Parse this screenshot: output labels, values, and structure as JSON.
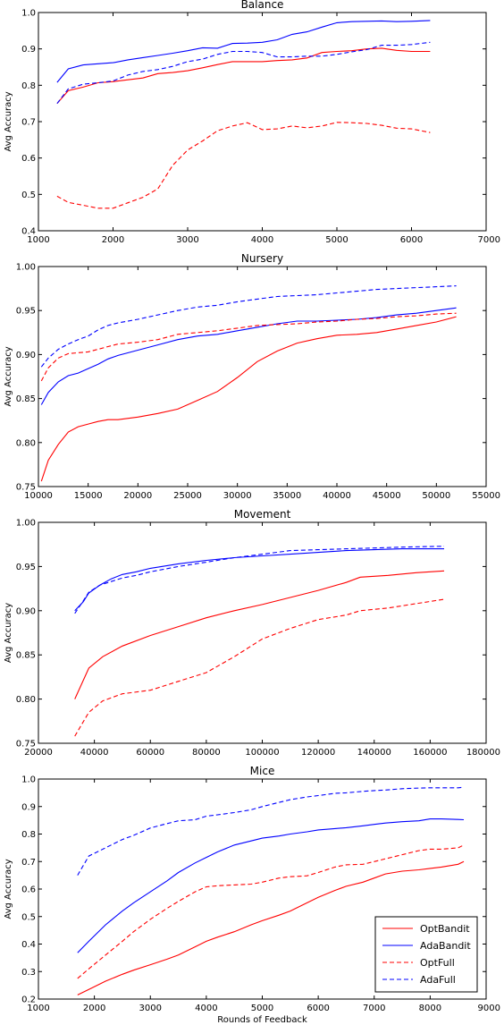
{
  "chart_data": [
    {
      "type": "line",
      "title": "Balance",
      "xlabel": "",
      "ylabel": "Avg Accuracy",
      "xlim": [
        1000,
        7000
      ],
      "ylim": [
        0.4,
        1.0
      ],
      "xticks": [
        "1000",
        "2000",
        "3000",
        "4000",
        "5000",
        "6000",
        "7000"
      ],
      "yticks": [
        "0.4",
        "0.5",
        "0.6",
        "0.7",
        "0.8",
        "0.9",
        "1.0"
      ],
      "grid": false,
      "legend": false,
      "series": [
        {
          "name": "OptBandit",
          "color": "#ff0000",
          "dash": "solid",
          "x": [
            1250,
            1400,
            1600,
            1800,
            2000,
            2200,
            2400,
            2600,
            2800,
            3000,
            3200,
            3400,
            3600,
            3800,
            4000,
            4200,
            4400,
            4600,
            4800,
            5000,
            5200,
            5400,
            5600,
            5800,
            6000,
            6250
          ],
          "y": [
            0.75,
            0.785,
            0.795,
            0.807,
            0.81,
            0.815,
            0.82,
            0.832,
            0.835,
            0.84,
            0.848,
            0.857,
            0.865,
            0.865,
            0.865,
            0.868,
            0.87,
            0.875,
            0.89,
            0.893,
            0.895,
            0.9,
            0.902,
            0.896,
            0.893,
            0.893
          ]
        },
        {
          "name": "AdaBandit",
          "color": "#0000ff",
          "dash": "solid",
          "x": [
            1250,
            1400,
            1600,
            1800,
            2000,
            2200,
            2400,
            2600,
            2800,
            3000,
            3200,
            3400,
            3600,
            3800,
            4000,
            4200,
            4400,
            4600,
            4800,
            5000,
            5200,
            5400,
            5600,
            5800,
            6000,
            6250
          ],
          "y": [
            0.808,
            0.845,
            0.856,
            0.859,
            0.862,
            0.87,
            0.876,
            0.882,
            0.888,
            0.895,
            0.903,
            0.902,
            0.915,
            0.916,
            0.918,
            0.925,
            0.94,
            0.947,
            0.96,
            0.972,
            0.975,
            0.976,
            0.977,
            0.975,
            0.976,
            0.978
          ]
        },
        {
          "name": "OptFull",
          "color": "#ff0000",
          "dash": "dashed",
          "x": [
            1250,
            1400,
            1600,
            1800,
            2000,
            2200,
            2400,
            2600,
            2800,
            3000,
            3200,
            3400,
            3600,
            3800,
            4000,
            4200,
            4400,
            4600,
            4800,
            5000,
            5200,
            5400,
            5600,
            5800,
            6000,
            6250
          ],
          "y": [
            0.495,
            0.478,
            0.47,
            0.462,
            0.462,
            0.477,
            0.492,
            0.515,
            0.58,
            0.622,
            0.647,
            0.675,
            0.688,
            0.697,
            0.678,
            0.68,
            0.688,
            0.683,
            0.688,
            0.698,
            0.697,
            0.695,
            0.69,
            0.682,
            0.68,
            0.67
          ]
        },
        {
          "name": "AdaFull",
          "color": "#0000ff",
          "dash": "dashed",
          "x": [
            1250,
            1400,
            1600,
            1800,
            2000,
            2200,
            2400,
            2600,
            2800,
            3000,
            3200,
            3400,
            3600,
            3800,
            4000,
            4200,
            4400,
            4600,
            4800,
            5000,
            5200,
            5400,
            5600,
            5800,
            6000,
            6250
          ],
          "y": [
            0.75,
            0.79,
            0.803,
            0.807,
            0.812,
            0.828,
            0.838,
            0.843,
            0.852,
            0.865,
            0.872,
            0.885,
            0.893,
            0.893,
            0.89,
            0.878,
            0.878,
            0.88,
            0.88,
            0.885,
            0.892,
            0.898,
            0.91,
            0.91,
            0.912,
            0.918
          ]
        }
      ]
    },
    {
      "type": "line",
      "title": "Nursery",
      "xlabel": "",
      "ylabel": "Avg Accuracy",
      "xlim": [
        10000,
        55000
      ],
      "ylim": [
        0.75,
        1.0
      ],
      "xticks": [
        "10000",
        "15000",
        "20000",
        "25000",
        "30000",
        "35000",
        "40000",
        "45000",
        "50000",
        "55000"
      ],
      "yticks": [
        "0.75",
        "0.80",
        "0.85",
        "0.90",
        "0.95",
        "1.00"
      ],
      "grid": false,
      "legend": false,
      "series": [
        {
          "name": "OptBandit",
          "color": "#ff0000",
          "dash": "solid",
          "x": [
            10300,
            11000,
            12000,
            13000,
            14000,
            15000,
            16000,
            17000,
            18000,
            20000,
            22000,
            24000,
            26000,
            28000,
            30000,
            32000,
            34000,
            36000,
            38000,
            40000,
            42000,
            44000,
            46000,
            48000,
            50000,
            52000
          ],
          "y": [
            0.756,
            0.78,
            0.798,
            0.812,
            0.818,
            0.821,
            0.824,
            0.826,
            0.826,
            0.829,
            0.833,
            0.838,
            0.848,
            0.858,
            0.874,
            0.892,
            0.904,
            0.913,
            0.918,
            0.922,
            0.923,
            0.925,
            0.929,
            0.933,
            0.937,
            0.943
          ]
        },
        {
          "name": "AdaBandit",
          "color": "#0000ff",
          "dash": "solid",
          "x": [
            10300,
            11000,
            12000,
            13000,
            14000,
            15000,
            16000,
            17000,
            18000,
            20000,
            22000,
            24000,
            26000,
            28000,
            30000,
            32000,
            34000,
            36000,
            38000,
            40000,
            42000,
            44000,
            46000,
            48000,
            50000,
            52000
          ],
          "y": [
            0.843,
            0.857,
            0.869,
            0.876,
            0.879,
            0.884,
            0.889,
            0.895,
            0.899,
            0.905,
            0.911,
            0.917,
            0.921,
            0.923,
            0.927,
            0.931,
            0.935,
            0.938,
            0.938,
            0.939,
            0.94,
            0.942,
            0.945,
            0.947,
            0.95,
            0.953
          ]
        },
        {
          "name": "OptFull",
          "color": "#ff0000",
          "dash": "dashed",
          "x": [
            10300,
            11000,
            12000,
            13000,
            14000,
            15000,
            16000,
            17000,
            18000,
            20000,
            22000,
            24000,
            26000,
            28000,
            30000,
            32000,
            34000,
            36000,
            38000,
            40000,
            42000,
            44000,
            46000,
            48000,
            50000,
            52000
          ],
          "y": [
            0.87,
            0.885,
            0.896,
            0.901,
            0.902,
            0.903,
            0.906,
            0.909,
            0.912,
            0.914,
            0.917,
            0.923,
            0.925,
            0.927,
            0.93,
            0.933,
            0.934,
            0.935,
            0.937,
            0.938,
            0.94,
            0.941,
            0.943,
            0.944,
            0.946,
            0.947
          ]
        },
        {
          "name": "AdaFull",
          "color": "#0000ff",
          "dash": "dashed",
          "x": [
            10300,
            11000,
            12000,
            13000,
            14000,
            15000,
            16000,
            17000,
            18000,
            20000,
            22000,
            24000,
            26000,
            28000,
            30000,
            32000,
            34000,
            36000,
            38000,
            40000,
            42000,
            44000,
            46000,
            48000,
            50000,
            52000
          ],
          "y": [
            0.886,
            0.896,
            0.906,
            0.912,
            0.917,
            0.921,
            0.928,
            0.933,
            0.936,
            0.94,
            0.945,
            0.95,
            0.954,
            0.956,
            0.96,
            0.963,
            0.966,
            0.967,
            0.968,
            0.97,
            0.972,
            0.974,
            0.975,
            0.976,
            0.977,
            0.978
          ]
        }
      ]
    },
    {
      "type": "line",
      "title": "Movement",
      "xlabel": "",
      "ylabel": "Avg Accuracy",
      "xlim": [
        20000,
        180000
      ],
      "ylim": [
        0.75,
        1.0
      ],
      "xticks": [
        "20000",
        "40000",
        "60000",
        "80000",
        "100000",
        "120000",
        "140000",
        "160000",
        "180000"
      ],
      "yticks": [
        "0.75",
        "0.80",
        "0.85",
        "0.90",
        "0.95",
        "1.00"
      ],
      "grid": false,
      "legend": false,
      "series": [
        {
          "name": "OptBandit",
          "color": "#ff0000",
          "dash": "solid",
          "x": [
            33000,
            38000,
            43000,
            50000,
            60000,
            70000,
            80000,
            90000,
            100000,
            110000,
            120000,
            130000,
            135000,
            145000,
            155000,
            165000
          ],
          "y": [
            0.8,
            0.835,
            0.848,
            0.86,
            0.872,
            0.882,
            0.892,
            0.9,
            0.907,
            0.915,
            0.923,
            0.932,
            0.938,
            0.94,
            0.943,
            0.945
          ]
        },
        {
          "name": "AdaBandit",
          "color": "#0000ff",
          "dash": "solid",
          "x": [
            33000,
            36000,
            38000,
            42000,
            46000,
            50000,
            55000,
            60000,
            70000,
            80000,
            90000,
            100000,
            110000,
            120000,
            130000,
            140000,
            150000,
            165000
          ],
          "y": [
            0.9,
            0.91,
            0.92,
            0.929,
            0.936,
            0.941,
            0.944,
            0.948,
            0.953,
            0.957,
            0.96,
            0.962,
            0.964,
            0.966,
            0.968,
            0.969,
            0.97,
            0.97
          ]
        },
        {
          "name": "OptFull",
          "color": "#ff0000",
          "dash": "dashed",
          "x": [
            33000,
            38000,
            43000,
            50000,
            60000,
            70000,
            80000,
            90000,
            100000,
            110000,
            120000,
            130000,
            135000,
            145000,
            155000,
            165000
          ],
          "y": [
            0.758,
            0.785,
            0.798,
            0.806,
            0.81,
            0.82,
            0.83,
            0.848,
            0.868,
            0.88,
            0.89,
            0.895,
            0.9,
            0.903,
            0.908,
            0.913
          ]
        },
        {
          "name": "AdaFull",
          "color": "#0000ff",
          "dash": "dashed",
          "x": [
            33000,
            36000,
            38000,
            42000,
            46000,
            50000,
            55000,
            60000,
            70000,
            80000,
            90000,
            100000,
            110000,
            120000,
            130000,
            140000,
            150000,
            165000
          ],
          "y": [
            0.897,
            0.911,
            0.921,
            0.929,
            0.933,
            0.937,
            0.94,
            0.944,
            0.95,
            0.955,
            0.96,
            0.964,
            0.968,
            0.969,
            0.97,
            0.971,
            0.972,
            0.973
          ]
        }
      ]
    },
    {
      "type": "line",
      "title": "Mice",
      "xlabel": "Rounds of Feedback",
      "ylabel": "Avg Accuracy",
      "xlim": [
        1000,
        9000
      ],
      "ylim": [
        0.2,
        1.0
      ],
      "xticks": [
        "1000",
        "2000",
        "3000",
        "4000",
        "5000",
        "6000",
        "7000",
        "8000",
        "9000"
      ],
      "yticks": [
        "0.2",
        "0.3",
        "0.4",
        "0.5",
        "0.6",
        "0.7",
        "0.8",
        "0.9",
        "1.0"
      ],
      "grid": false,
      "legend": true,
      "legend_position": "lower-right",
      "series": [
        {
          "name": "OptBandit",
          "color": "#ff0000",
          "dash": "solid",
          "x": [
            1700,
            1900,
            2200,
            2500,
            2700,
            3000,
            3300,
            3500,
            3800,
            4000,
            4200,
            4500,
            4800,
            5000,
            5300,
            5500,
            5800,
            6000,
            6300,
            6500,
            6800,
            7000,
            7200,
            7500,
            7800,
            8000,
            8200,
            8500,
            8600
          ],
          "y": [
            0.215,
            0.235,
            0.265,
            0.29,
            0.305,
            0.325,
            0.345,
            0.36,
            0.39,
            0.41,
            0.425,
            0.445,
            0.47,
            0.485,
            0.505,
            0.52,
            0.55,
            0.57,
            0.595,
            0.61,
            0.625,
            0.64,
            0.655,
            0.665,
            0.67,
            0.675,
            0.68,
            0.69,
            0.7
          ]
        },
        {
          "name": "AdaBandit",
          "color": "#0000ff",
          "dash": "solid",
          "x": [
            1700,
            1900,
            2200,
            2500,
            2700,
            3000,
            3300,
            3500,
            3800,
            4000,
            4200,
            4500,
            4800,
            5000,
            5300,
            5500,
            5800,
            6000,
            6300,
            6500,
            6800,
            7000,
            7200,
            7500,
            7800,
            8000,
            8200,
            8500,
            8600
          ],
          "y": [
            0.368,
            0.41,
            0.47,
            0.52,
            0.55,
            0.59,
            0.63,
            0.66,
            0.695,
            0.715,
            0.735,
            0.76,
            0.775,
            0.785,
            0.793,
            0.8,
            0.808,
            0.815,
            0.82,
            0.823,
            0.83,
            0.835,
            0.84,
            0.845,
            0.848,
            0.855,
            0.855,
            0.853,
            0.852
          ]
        },
        {
          "name": "OptFull",
          "color": "#ff0000",
          "dash": "dashed",
          "x": [
            1700,
            1900,
            2200,
            2500,
            2700,
            3000,
            3300,
            3500,
            3800,
            4000,
            4200,
            4500,
            4800,
            5000,
            5300,
            5500,
            5800,
            6000,
            6300,
            6500,
            6800,
            7000,
            7200,
            7500,
            7800,
            8000,
            8200,
            8500,
            8600
          ],
          "y": [
            0.275,
            0.31,
            0.36,
            0.41,
            0.445,
            0.49,
            0.53,
            0.555,
            0.59,
            0.608,
            0.612,
            0.615,
            0.618,
            0.625,
            0.64,
            0.645,
            0.648,
            0.66,
            0.68,
            0.688,
            0.69,
            0.7,
            0.71,
            0.725,
            0.74,
            0.745,
            0.745,
            0.75,
            0.76
          ]
        },
        {
          "name": "AdaFull",
          "color": "#0000ff",
          "dash": "dashed",
          "x": [
            1700,
            1900,
            2200,
            2500,
            2700,
            3000,
            3300,
            3500,
            3800,
            4000,
            4200,
            4500,
            4800,
            5000,
            5300,
            5500,
            5800,
            6000,
            6300,
            6500,
            6800,
            7000,
            7200,
            7500,
            7800,
            8000,
            8200,
            8500,
            8600
          ],
          "y": [
            0.65,
            0.72,
            0.75,
            0.78,
            0.795,
            0.822,
            0.838,
            0.848,
            0.852,
            0.865,
            0.87,
            0.878,
            0.888,
            0.9,
            0.915,
            0.925,
            0.935,
            0.94,
            0.948,
            0.95,
            0.955,
            0.958,
            0.96,
            0.965,
            0.967,
            0.968,
            0.968,
            0.968,
            0.97
          ]
        }
      ]
    }
  ]
}
